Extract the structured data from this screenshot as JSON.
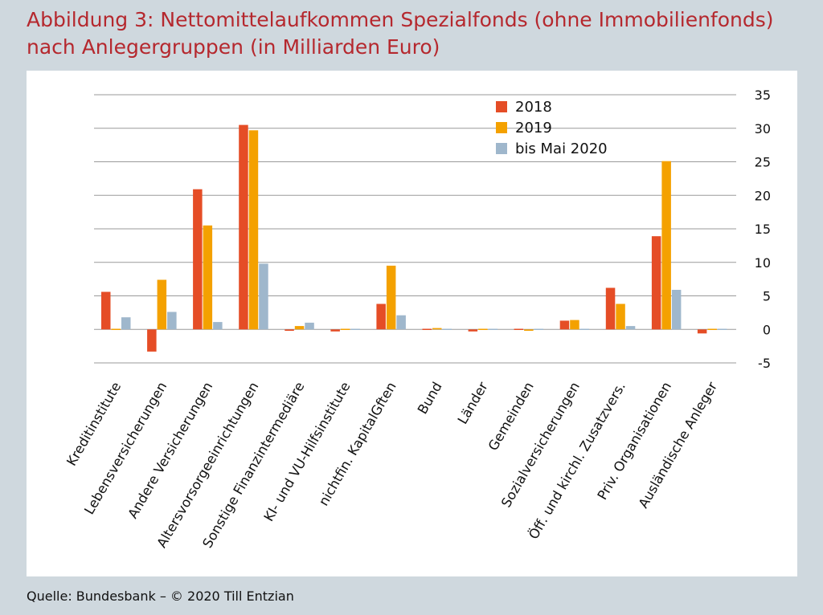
{
  "title_line1": "Abbildung 3: Nettomittelaufkommen Spezialfonds (ohne Immobilienfonds)",
  "title_line2": "nach Anlegergruppen (in Milliarden Euro)",
  "source": "Quelle: Bundesbank – © 2020 Till Entzian",
  "colors": {
    "background": "#cfd8de",
    "panel": "#ffffff",
    "title": "#b5282e",
    "grid": "#9a9a9a"
  },
  "chart_data": {
    "type": "bar",
    "title": "",
    "xlabel": "",
    "ylabel": "",
    "ylim": [
      -5,
      35
    ],
    "yticks": [
      35,
      30,
      25,
      20,
      15,
      10,
      5,
      0,
      -5
    ],
    "ytick_labels": [
      "35",
      "30",
      "25",
      "20",
      "15",
      "10",
      "5",
      "0",
      "-5"
    ],
    "y_axis_side": "right",
    "grid": true,
    "legend_position": "top-right",
    "categories": [
      "Kreditinstitute",
      "Lebensversicherungen",
      "Andere Versicherungen",
      "Altersvorsorgeeinrichtungen",
      "Sonstige Finanzintermediäre",
      "KI- und VU-Hilfsinstitute",
      "nichtfin. KapitalGften",
      "Bund",
      "Länder",
      "Gemeinden",
      "Sozialversicherungen",
      "Öff. und kirchl. Zusatzvers.",
      "Priv. Organisationen",
      "Ausländische Anleger"
    ],
    "series": [
      {
        "name": "2018",
        "color": "#e54d26",
        "values": [
          5.6,
          -3.3,
          20.9,
          30.5,
          -0.2,
          -0.3,
          3.8,
          0.0,
          -0.3,
          -0.1,
          1.3,
          6.2,
          13.9,
          -0.6
        ]
      },
      {
        "name": "2019",
        "color": "#f4a100",
        "values": [
          0.1,
          7.4,
          15.5,
          29.7,
          0.5,
          -0.1,
          9.5,
          0.2,
          0.1,
          -0.2,
          1.4,
          3.8,
          25.1,
          0.1
        ]
      },
      {
        "name": "bis Mai 2020",
        "color": "#9fb7cc",
        "values": [
          1.8,
          2.6,
          1.1,
          9.8,
          1.0,
          0.0,
          2.1,
          0.0,
          0.0,
          0.0,
          0.1,
          0.5,
          5.9,
          0.0
        ]
      }
    ]
  }
}
